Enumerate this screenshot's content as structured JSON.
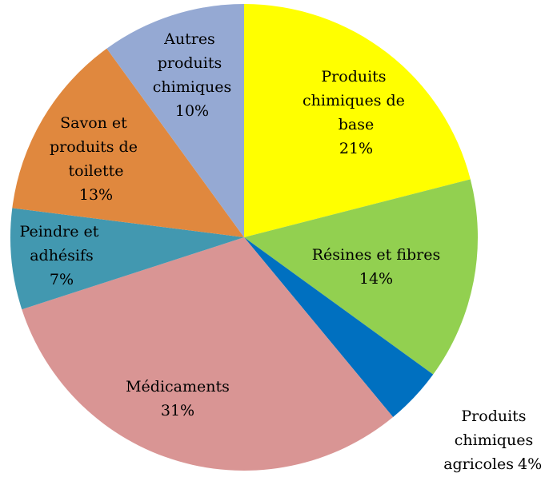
{
  "chart_data": {
    "type": "pie",
    "categories": [
      "Produits chimiques de base",
      "Résines et fibres",
      "Produits chimiques agricoles",
      "Médicaments",
      "Peindre et adhésifs",
      "Savon et produits de toilette",
      "Autres produits chimiques"
    ],
    "values": [
      21,
      14,
      4,
      31,
      7,
      13,
      10
    ],
    "value_labels": [
      "21%",
      "14%",
      "4%",
      "31%",
      "7%",
      "13%",
      "10%"
    ],
    "colors": [
      "#ffff00",
      "#92d050",
      "#0070c0",
      "#d99594",
      "#4298b0",
      "#e0883e",
      "#95a9d3"
    ]
  }
}
